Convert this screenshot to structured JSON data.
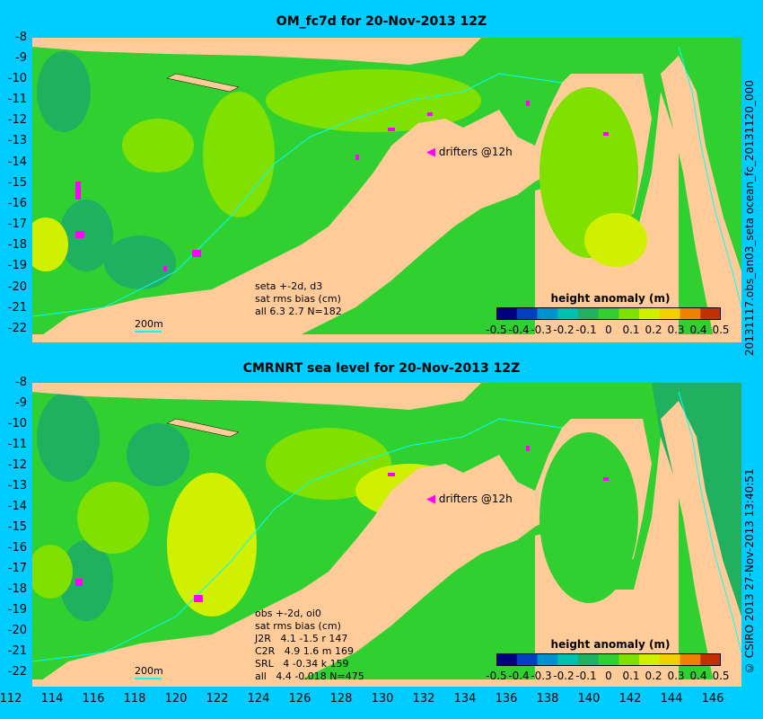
{
  "panels": [
    {
      "title": "OM_fc7d for 20-Nov-2013 12Z",
      "side_label": "20131117.obs_an03_seta    ocean_fc_20131120_000",
      "stats": "seta +-2d, d3\nsat rms bias (cm)\nall 6.3 2.7 N=182",
      "drifters": "drifters @12h",
      "scale": "200m"
    },
    {
      "title": "CMRNRT sea level  for 20-Nov-2013 12Z",
      "side_label": "© CSIRO 2013   27-Nov-2013 13:40:51",
      "stats": "obs +-2d, oi0\nsat rms bias (cm)\nJ2R   4.1 -1.5 r 147\nC2R   4.9 1.6 m 169\nSRL   4 -0.34 k 159\nall   4.4 -0.018 N=475",
      "drifters": "drifters @12h",
      "scale": "200m"
    }
  ],
  "y_ticks": [
    "-8",
    "-9",
    "-10",
    "-11",
    "-12",
    "-13",
    "-14",
    "-15",
    "-16",
    "-17",
    "-18",
    "-19",
    "-20",
    "-21",
    "-22"
  ],
  "x_ticks": [
    "112",
    "114",
    "116",
    "118",
    "120",
    "122",
    "124",
    "126",
    "128",
    "130",
    "132",
    "134",
    "136",
    "138",
    "140",
    "142",
    "144",
    "146"
  ],
  "colorbar": {
    "title": "height anomaly (m)",
    "ticks": [
      "-0.5",
      "-0.4",
      "-0.3",
      "-0.2",
      "-0.1",
      "0",
      "0.1",
      "0.2",
      "0.3",
      "0.4",
      "0.5"
    ],
    "colors": [
      "#00007f",
      "#0040c0",
      "#0090d0",
      "#00c0b0",
      "#20b060",
      "#30d030",
      "#80e000",
      "#d0f000",
      "#f0d000",
      "#f08000",
      "#c03000"
    ]
  },
  "colors": {
    "land": "#ffcc99",
    "frame": "#00ccff",
    "drifter": "#ff00ff"
  }
}
